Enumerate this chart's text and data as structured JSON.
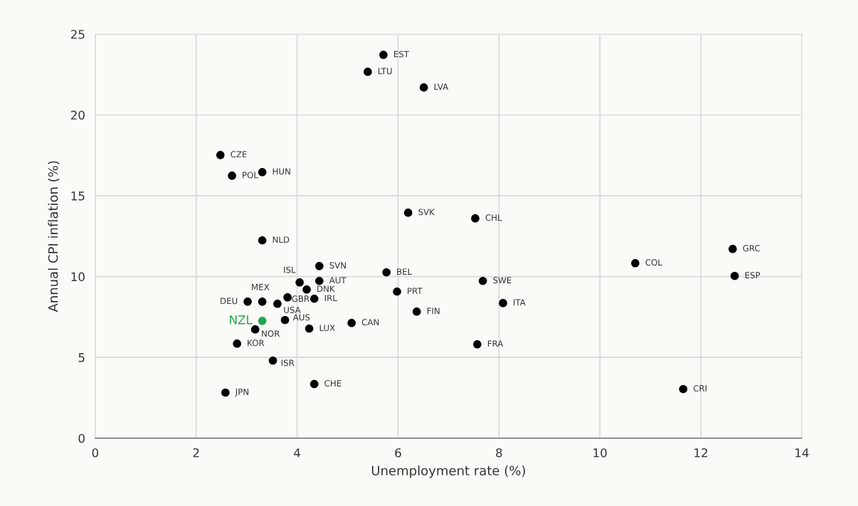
{
  "chart_data": {
    "type": "scatter",
    "xlabel": "Unemployment rate (%)",
    "ylabel": "Annual CPI inflation (%)",
    "x": [
      5.71,
      5.4,
      6.51,
      2.48,
      2.71,
      3.31,
      6.2,
      7.53,
      3.31,
      4.44,
      4.05,
      4.44,
      4.19,
      5.77,
      5.98,
      3.31,
      3.02,
      3.81,
      3.61,
      4.34,
      3.31,
      3.17,
      3.76,
      4.24,
      5.08,
      2.81,
      3.52,
      4.34,
      2.58,
      6.37,
      7.57,
      7.68,
      8.08,
      10.7,
      12.63,
      12.67,
      11.65
    ],
    "values": [
      23.72,
      22.67,
      21.7,
      17.52,
      16.24,
      16.46,
      13.95,
      13.6,
      12.24,
      10.65,
      9.64,
      9.73,
      9.2,
      10.26,
      9.07,
      8.45,
      8.45,
      8.71,
      8.32,
      8.63,
      7.26,
      6.73,
      7.31,
      6.78,
      7.13,
      5.85,
      4.8,
      3.35,
      2.82,
      7.83,
      5.81,
      9.73,
      8.36,
      10.83,
      11.71,
      10.04,
      3.04
    ],
    "colors": [
      "#000000",
      "#000000",
      "#000000",
      "#000000",
      "#000000",
      "#000000",
      "#000000",
      "#000000",
      "#000000",
      "#000000",
      "#000000",
      "#000000",
      "#000000",
      "#000000",
      "#000000",
      "#000000",
      "#000000",
      "#000000",
      "#000000",
      "#000000",
      "#21a84f",
      "#000000",
      "#000000",
      "#000000",
      "#000000",
      "#000000",
      "#000000",
      "#000000",
      "#000000",
      "#000000",
      "#000000",
      "#000000",
      "#000000",
      "#000000",
      "#000000",
      "#000000",
      "#000000"
    ],
    "annotations": [
      {
        "text": "EST",
        "x": 5.71,
        "y": 23.72
      },
      {
        "text": "LTU",
        "x": 5.4,
        "y": 22.67
      },
      {
        "text": "LVA",
        "x": 6.51,
        "y": 21.7
      },
      {
        "text": "CZE",
        "x": 2.48,
        "y": 17.52
      },
      {
        "text": "POL",
        "x": 2.71,
        "y": 16.24
      },
      {
        "text": "HUN",
        "x": 3.31,
        "y": 16.46
      },
      {
        "text": "SVK",
        "x": 6.2,
        "y": 13.95
      },
      {
        "text": "CHL",
        "x": 7.53,
        "y": 13.6
      },
      {
        "text": "NLD",
        "x": 3.31,
        "y": 12.24
      },
      {
        "text": "SVN",
        "x": 4.44,
        "y": 10.65
      },
      {
        "text": "ISL",
        "x": 4.05,
        "y": 9.64
      },
      {
        "text": "AUT",
        "x": 4.44,
        "y": 9.73
      },
      {
        "text": "DNK",
        "x": 4.19,
        "y": 9.2
      },
      {
        "text": "BEL",
        "x": 5.77,
        "y": 10.26
      },
      {
        "text": "PRT",
        "x": 5.98,
        "y": 9.07
      },
      {
        "text": "MEX",
        "x": 3.31,
        "y": 8.45
      },
      {
        "text": "DEU",
        "x": 3.02,
        "y": 8.45
      },
      {
        "text": "GBR",
        "x": 3.81,
        "y": 8.71
      },
      {
        "text": "USA",
        "x": 3.61,
        "y": 8.32
      },
      {
        "text": "IRL",
        "x": 4.34,
        "y": 8.63
      },
      {
        "text": "NZL",
        "x": 3.31,
        "y": 7.26
      },
      {
        "text": "NOR",
        "x": 3.17,
        "y": 6.73
      },
      {
        "text": "AUS",
        "x": 3.76,
        "y": 7.31
      },
      {
        "text": "LUX",
        "x": 4.24,
        "y": 6.78
      },
      {
        "text": "CAN",
        "x": 5.08,
        "y": 7.13
      },
      {
        "text": "KOR",
        "x": 2.81,
        "y": 5.85
      },
      {
        "text": "ISR",
        "x": 3.52,
        "y": 4.8
      },
      {
        "text": "CHE",
        "x": 4.34,
        "y": 3.35
      },
      {
        "text": "JPN",
        "x": 2.58,
        "y": 2.82
      },
      {
        "text": "FIN",
        "x": 6.37,
        "y": 7.83
      },
      {
        "text": "FRA",
        "x": 7.57,
        "y": 5.81
      },
      {
        "text": "SWE",
        "x": 7.68,
        "y": 9.73
      },
      {
        "text": "ITA",
        "x": 8.08,
        "y": 8.36
      },
      {
        "text": "COL",
        "x": 10.7,
        "y": 10.83
      },
      {
        "text": "GRC",
        "x": 12.63,
        "y": 11.71
      },
      {
        "text": "ESP",
        "x": 12.67,
        "y": 10.04
      },
      {
        "text": "CRI",
        "x": 11.65,
        "y": 3.04
      }
    ],
    "xlim": [
      0,
      14
    ],
    "xticks": [
      0,
      2,
      4,
      6,
      8,
      10,
      12,
      14
    ],
    "ylim": [
      0,
      25
    ],
    "yticks": [
      0,
      5,
      10,
      15,
      20,
      25
    ],
    "grid": true,
    "marker": "circle"
  }
}
